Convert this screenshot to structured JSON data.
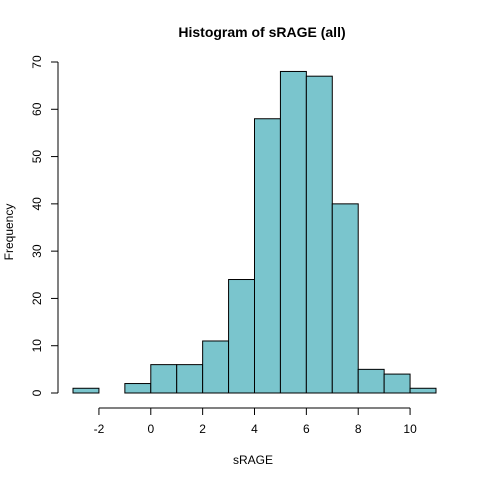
{
  "chart_data": {
    "type": "bar",
    "title": "Histogram of sRAGE (all)",
    "xlabel": "sRAGE",
    "ylabel": "Frequency",
    "bin_edges": [
      -3,
      -2,
      -1,
      0,
      1,
      2,
      3,
      4,
      5,
      6,
      7,
      8,
      9,
      10,
      11
    ],
    "counts": [
      1,
      0,
      2,
      6,
      6,
      11,
      24,
      58,
      68,
      67,
      40,
      5,
      4,
      1
    ],
    "xlim": [
      -3,
      11
    ],
    "ylim": [
      0,
      70
    ],
    "x_ticks": [
      -2,
      0,
      2,
      4,
      6,
      8,
      10
    ],
    "y_ticks": [
      0,
      10,
      20,
      30,
      40,
      50,
      60,
      70
    ],
    "bar_color": "#7AC5CD",
    "grid": false
  }
}
